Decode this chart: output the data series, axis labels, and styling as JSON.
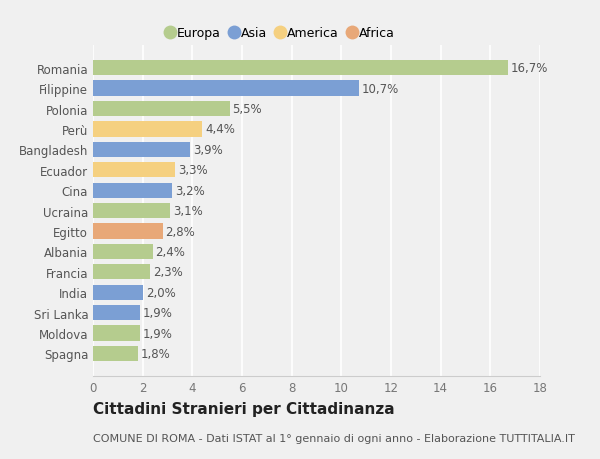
{
  "countries": [
    "Romania",
    "Filippine",
    "Polonia",
    "Perù",
    "Bangladesh",
    "Ecuador",
    "Cina",
    "Ucraina",
    "Egitto",
    "Albania",
    "Francia",
    "India",
    "Sri Lanka",
    "Moldova",
    "Spagna"
  ],
  "values": [
    16.7,
    10.7,
    5.5,
    4.4,
    3.9,
    3.3,
    3.2,
    3.1,
    2.8,
    2.4,
    2.3,
    2.0,
    1.9,
    1.9,
    1.8
  ],
  "labels": [
    "16,7%",
    "10,7%",
    "5,5%",
    "4,4%",
    "3,9%",
    "3,3%",
    "3,2%",
    "3,1%",
    "2,8%",
    "2,4%",
    "2,3%",
    "2,0%",
    "1,9%",
    "1,9%",
    "1,8%"
  ],
  "continents": [
    "Europa",
    "Asia",
    "Europa",
    "America",
    "Asia",
    "America",
    "Asia",
    "Europa",
    "Africa",
    "Europa",
    "Europa",
    "Asia",
    "Asia",
    "Europa",
    "Europa"
  ],
  "continent_colors": {
    "Europa": "#b5cc8e",
    "Asia": "#7b9fd4",
    "America": "#f5d080",
    "Africa": "#e8a878"
  },
  "legend_order": [
    "Europa",
    "Asia",
    "America",
    "Africa"
  ],
  "title": "Cittadini Stranieri per Cittadinanza",
  "subtitle": "COMUNE DI ROMA - Dati ISTAT al 1° gennaio di ogni anno - Elaborazione TUTTITALIA.IT",
  "xlim": [
    0,
    18
  ],
  "xticks": [
    0,
    2,
    4,
    6,
    8,
    10,
    12,
    14,
    16,
    18
  ],
  "bg_color": "#f0f0f0",
  "plot_bg": "#f0f0f0",
  "bar_height": 0.75,
  "label_fontsize": 8.5,
  "tick_fontsize": 8.5,
  "title_fontsize": 11,
  "subtitle_fontsize": 8
}
